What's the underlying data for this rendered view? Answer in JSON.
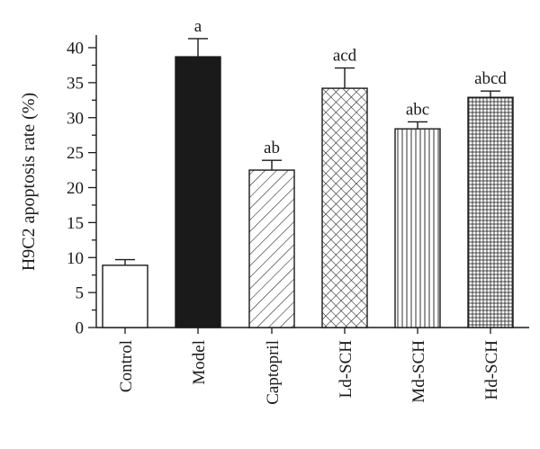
{
  "chart_data": {
    "type": "bar",
    "ylabel": "H9C2 apoptosis rate (%)",
    "xlabel": "",
    "ylim": [
      0,
      40
    ],
    "yticks_major": [
      0,
      5,
      10,
      15,
      20,
      25,
      30,
      35,
      40
    ],
    "yminor_step": 2.5,
    "grid": false,
    "legend": "none",
    "categories": [
      "Control",
      "Model",
      "Captopril",
      "Ld-SCH",
      "Md-SCH",
      "Hd-SCH"
    ],
    "values": [
      8.9,
      38.7,
      22.5,
      34.2,
      28.4,
      32.9
    ],
    "errors": [
      0.8,
      2.6,
      1.4,
      2.9,
      1.0,
      0.9
    ],
    "significance": [
      "",
      "a",
      "ab",
      "acd",
      "abc",
      "abcd"
    ],
    "patterns": [
      "empty",
      "solid",
      "diagonal-hatch",
      "crosshatch-diagonal",
      "vertical-lines",
      "grid"
    ],
    "colors": {
      "ink": "#1a1a1a",
      "background": "#ffffff"
    }
  }
}
